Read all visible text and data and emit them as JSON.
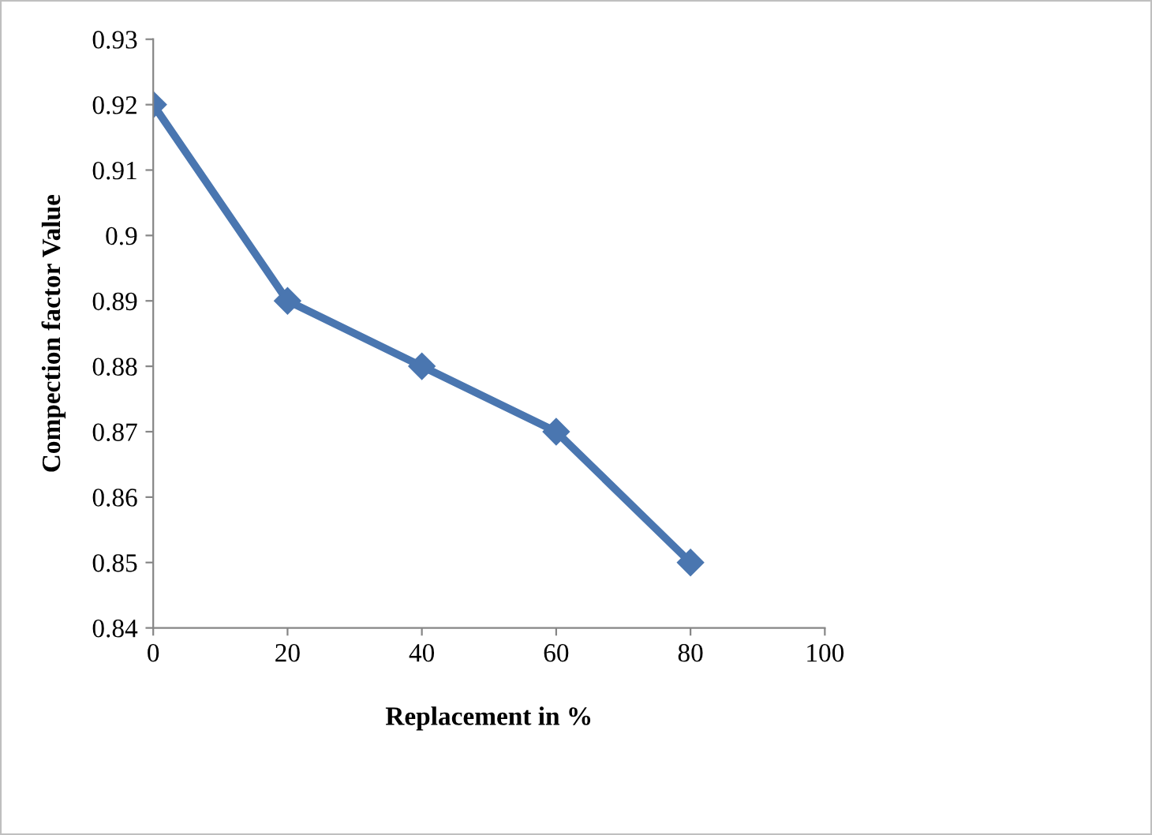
{
  "chart_data": {
    "type": "line",
    "xlabel": "Replacement in %",
    "ylabel": "Compection factor Value",
    "x": [
      0,
      20,
      40,
      60,
      80
    ],
    "series": [
      {
        "color": "#4a76b0",
        "values": [
          0.92,
          0.89,
          0.88,
          0.87,
          0.85
        ]
      }
    ],
    "xlim": [
      0,
      100
    ],
    "xticks": [
      0,
      20,
      40,
      60,
      80,
      100
    ],
    "ylim": [
      0.84,
      0.93
    ],
    "yticks": [
      0.84,
      0.85,
      0.86,
      0.87,
      0.88,
      0.89,
      0.9,
      0.91,
      0.92,
      0.93
    ],
    "marker": "diamond",
    "line_style": "solid",
    "grid": false,
    "legend": false
  }
}
